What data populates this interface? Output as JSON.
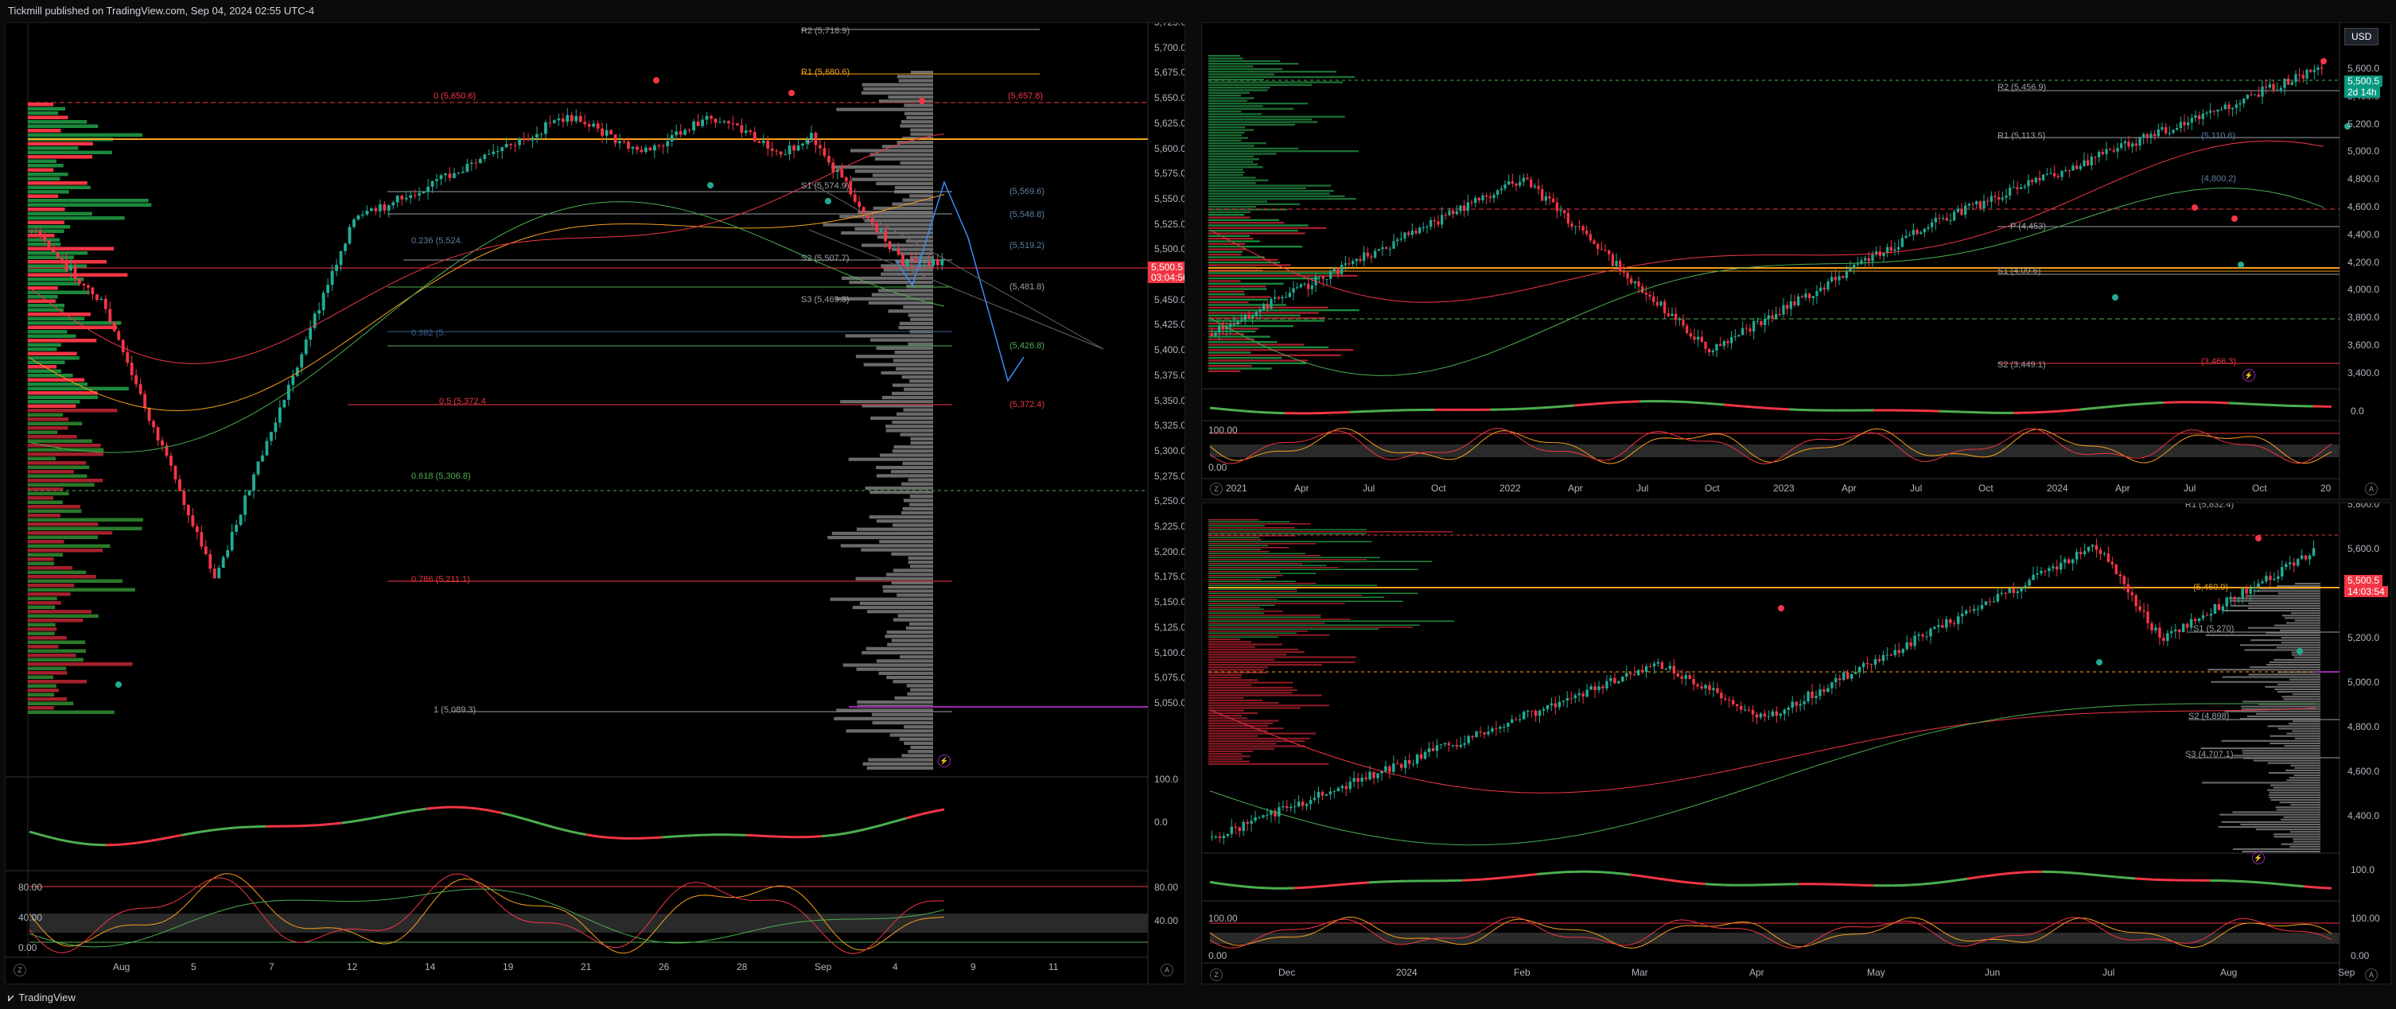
{
  "header": {
    "publisher_line": "Tickmill published on TradingView.com, Sep 04, 2024 02:55 UTC-4"
  },
  "footer": {
    "brand": "TradingView"
  },
  "currency_button": "USD",
  "colors": {
    "bull": "#22ab94",
    "bear": "#f23645",
    "orange": "#f7a21b",
    "bg": "#000000"
  },
  "left_chart": {
    "price_axis": [
      "5,725.0",
      "5,700.0",
      "5,675.0",
      "5,650.0",
      "5,625.0",
      "5,600.0",
      "5,575.0",
      "5,550.0",
      "5,525.0",
      "5,500.0",
      "5,475.0",
      "5,450.0",
      "5,425.0",
      "5,400.0",
      "5,375.0",
      "5,350.0",
      "5,325.0",
      "5,300.0",
      "5,275.0",
      "5,250.0",
      "5,225.0",
      "5,200.0",
      "5,175.0",
      "5,150.0",
      "5,125.0",
      "5,100.0",
      "5,075.0",
      "5,050.0"
    ],
    "time_axis": [
      "Aug",
      "5",
      "7",
      "12",
      "14",
      "19",
      "21",
      "26",
      "28",
      "Sep",
      "4",
      "9",
      "11"
    ],
    "price_tag": "5,500.5",
    "price_tag_time": "03:04:56",
    "pivot_labels": {
      "r2": "R2 (5,718.9)",
      "r1": "R1 (5,680.6)",
      "p": "P",
      "s1": "S1 (5,574.9)",
      "s2": "S2 (5,507.7)",
      "s3": "S3 (5,469.3)"
    },
    "fib_labels": {
      "f0": "0 (5,650.6)",
      "f0236": "0.236 (5,524.",
      "f0618": "0.618 (5,306.8)",
      "f0786": "0.786 (5,211.1)",
      "f1": "1 (5,089.3)",
      "f0382": "0.382 (5,",
      "f05": "0.5 (5,372.4"
    },
    "level_labels": {
      "l5657": "(5,657.8)",
      "l5569": "(5,569.6)",
      "l5548": "(5,548.8)",
      "l5519": "(5,519.2)",
      "l5481": "(5,481.8)",
      "l5426": "(5,426.8)",
      "l5372": "(5,372.4)"
    },
    "osc1_axis": [
      "100.0",
      "0.0"
    ],
    "osc2_axis": [
      "80.00",
      "40.00",
      "0.00"
    ],
    "osc2_axis_right": [
      "80.00",
      "40.00"
    ]
  },
  "right_top_chart": {
    "price_axis": [
      "5,600.0",
      "5,400.0",
      "5,200.0",
      "5,000.0",
      "4,800.0",
      "4,600.0",
      "4,400.0",
      "4,200.0",
      "4,000.0",
      "3,800.0",
      "3,600.0",
      "3,400.0"
    ],
    "time_axis": [
      "2021",
      "Apr",
      "Jul",
      "Oct",
      "2022",
      "Apr",
      "Jul",
      "Oct",
      "2023",
      "Apr",
      "Jul",
      "Oct",
      "2024",
      "Apr",
      "Jul",
      "Oct",
      "20"
    ],
    "price_tag": "5,500.5",
    "price_tag_time": "2d 14h",
    "labels": {
      "r2": "R2 (5,456.9)",
      "r1": "R1 (5,113.5)",
      "p": "P (4,453)",
      "s1": "S1 (4,09.6)",
      "s2": "S2 (3,449.1)",
      "s2b": "(3,466.3)",
      "v1": "(4,800.2)",
      "v2": "(5,110.6)"
    },
    "osc1_axis": [
      "0.0"
    ],
    "osc2_axis": [
      "100.00",
      "0.00"
    ]
  },
  "right_bottom_chart": {
    "price_axis": [
      "5,800.0",
      "5,600.0",
      "5,400.0",
      "5,200.0",
      "5,000.0",
      "4,800.0",
      "4,600.0",
      "4,400.0"
    ],
    "time_axis": [
      "Dec",
      "2024",
      "Feb",
      "Mar",
      "Apr",
      "May",
      "Jun",
      "Jul",
      "Aug",
      "Sep"
    ],
    "price_tag": "5,500.5",
    "price_tag_time": "14:03:54",
    "labels": {
      "r1": "R1 (5,832.4)",
      "s1": "S1 (5,270)",
      "s2": "S2 (4,898)",
      "s3": "S3 (4,707.1)",
      "v": "(5,460.9)"
    },
    "osc1_axis": [
      "100.0"
    ],
    "osc2_axis": [
      "100.00",
      "0.00"
    ]
  }
}
